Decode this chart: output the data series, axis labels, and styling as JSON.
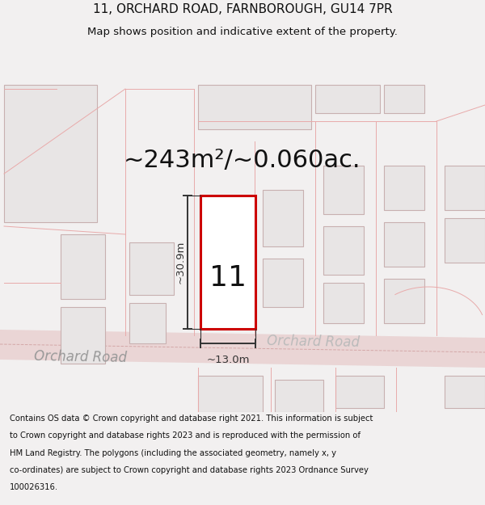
{
  "title_line1": "11, ORCHARD ROAD, FARNBOROUGH, GU14 7PR",
  "title_line2": "Map shows position and indicative extent of the property.",
  "area_text": "~243m²/~0.060ac.",
  "property_number": "11",
  "dim_width": "~13.0m",
  "dim_height": "~30.9m",
  "road_label_left": "Orchard Road",
  "road_label_right": "Orchard Road",
  "footer_lines": [
    "Contains OS data © Crown copyright and database right 2021. This information is subject",
    "to Crown copyright and database rights 2023 and is reproduced with the permission of",
    "HM Land Registry. The polygons (including the associated geometry, namely x, y",
    "co-ordinates) are subject to Crown copyright and database rights 2023 Ordnance Survey",
    "100026316."
  ],
  "bg_color": "#f2f0f0",
  "map_bg": "#f7f5f5",
  "road_color": "#ead5d5",
  "bldg_fill": "#e8e5e5",
  "bldg_edge": "#c8b0b0",
  "plot_edge": "#e8aaaa",
  "property_fill": "#ffffff",
  "property_edge": "#cc0000",
  "dim_color": "#333333",
  "text_dark": "#111111",
  "text_road": "#aaaaaa",
  "title_fs": 11,
  "subtitle_fs": 9.5,
  "area_fs": 22,
  "propnum_fs": 26,
  "dim_fs": 9.5,
  "road_fs": 12,
  "footer_fs": 7.2
}
